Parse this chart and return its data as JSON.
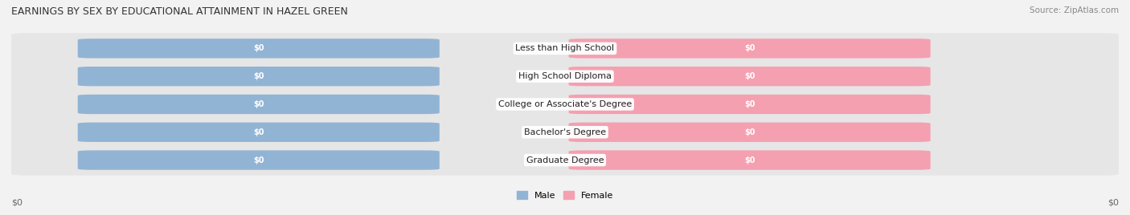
{
  "title": "EARNINGS BY SEX BY EDUCATIONAL ATTAINMENT IN HAZEL GREEN",
  "source": "Source: ZipAtlas.com",
  "categories": [
    "Less than High School",
    "High School Diploma",
    "College or Associate's Degree",
    "Bachelor's Degree",
    "Graduate Degree"
  ],
  "male_values": [
    0,
    0,
    0,
    0,
    0
  ],
  "female_values": [
    0,
    0,
    0,
    0,
    0
  ],
  "male_color": "#92b4d4",
  "female_color": "#f4a0b0",
  "background_color": "#f2f2f2",
  "row_even_color": "#e8e8e8",
  "row_odd_color": "#e0e0e0",
  "xlabel_left": "$0",
  "xlabel_right": "$0",
  "legend_male": "Male",
  "legend_female": "Female",
  "title_fontsize": 9,
  "source_fontsize": 7.5,
  "bar_label_fontsize": 7,
  "category_fontsize": 8,
  "legend_fontsize": 8,
  "xlabel_fontsize": 8,
  "figsize": [
    14.06,
    2.68
  ],
  "dpi": 100
}
